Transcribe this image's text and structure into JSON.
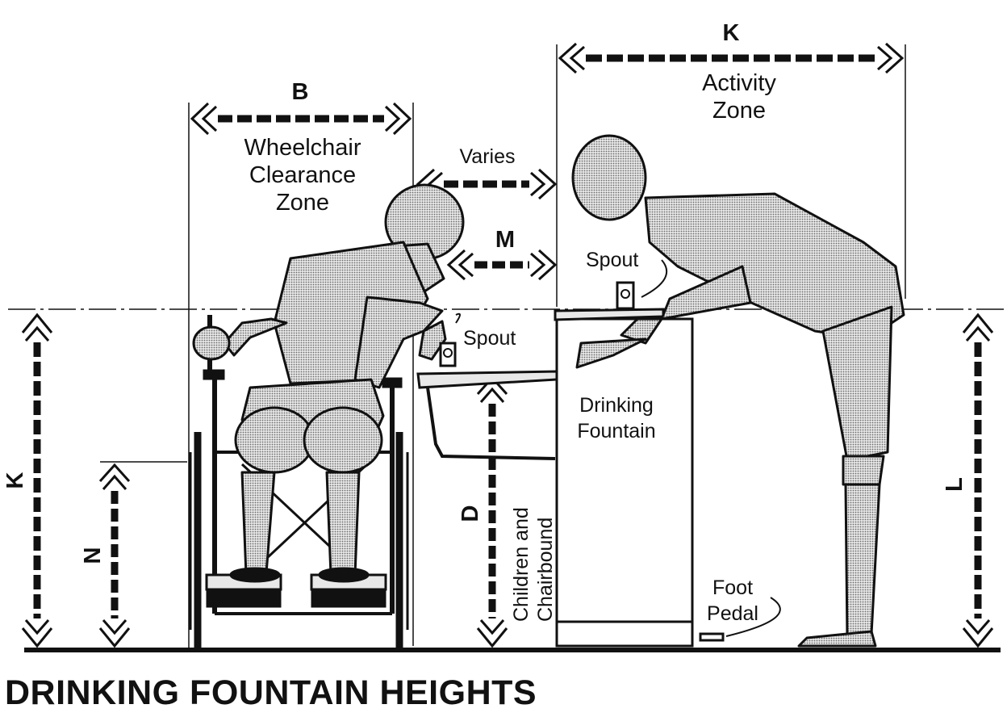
{
  "title": "DRINKING FOUNTAIN HEIGHTS",
  "zones": {
    "wheelchair_letter": "B",
    "wheelchair_label": [
      "Wheelchair",
      "Clearance",
      "Zone"
    ],
    "activity_letter": "K",
    "activity_label": [
      "Activity",
      "Zone"
    ],
    "varies": "Varies",
    "m_letter": "M"
  },
  "labels": {
    "spout_low": "Spout",
    "spout_high": "Spout",
    "fountain": [
      "Drinking",
      "Fountain"
    ],
    "foot_pedal": [
      "Foot",
      "Pedal"
    ],
    "children": [
      "Children and",
      "Chairbound"
    ]
  },
  "heights": {
    "k_left": "K",
    "n_left": "N",
    "d_mid": "D",
    "l_right": "L"
  },
  "colors": {
    "ink": "#111111",
    "figure_fill": "#bdbdbd",
    "background": "#ffffff"
  }
}
